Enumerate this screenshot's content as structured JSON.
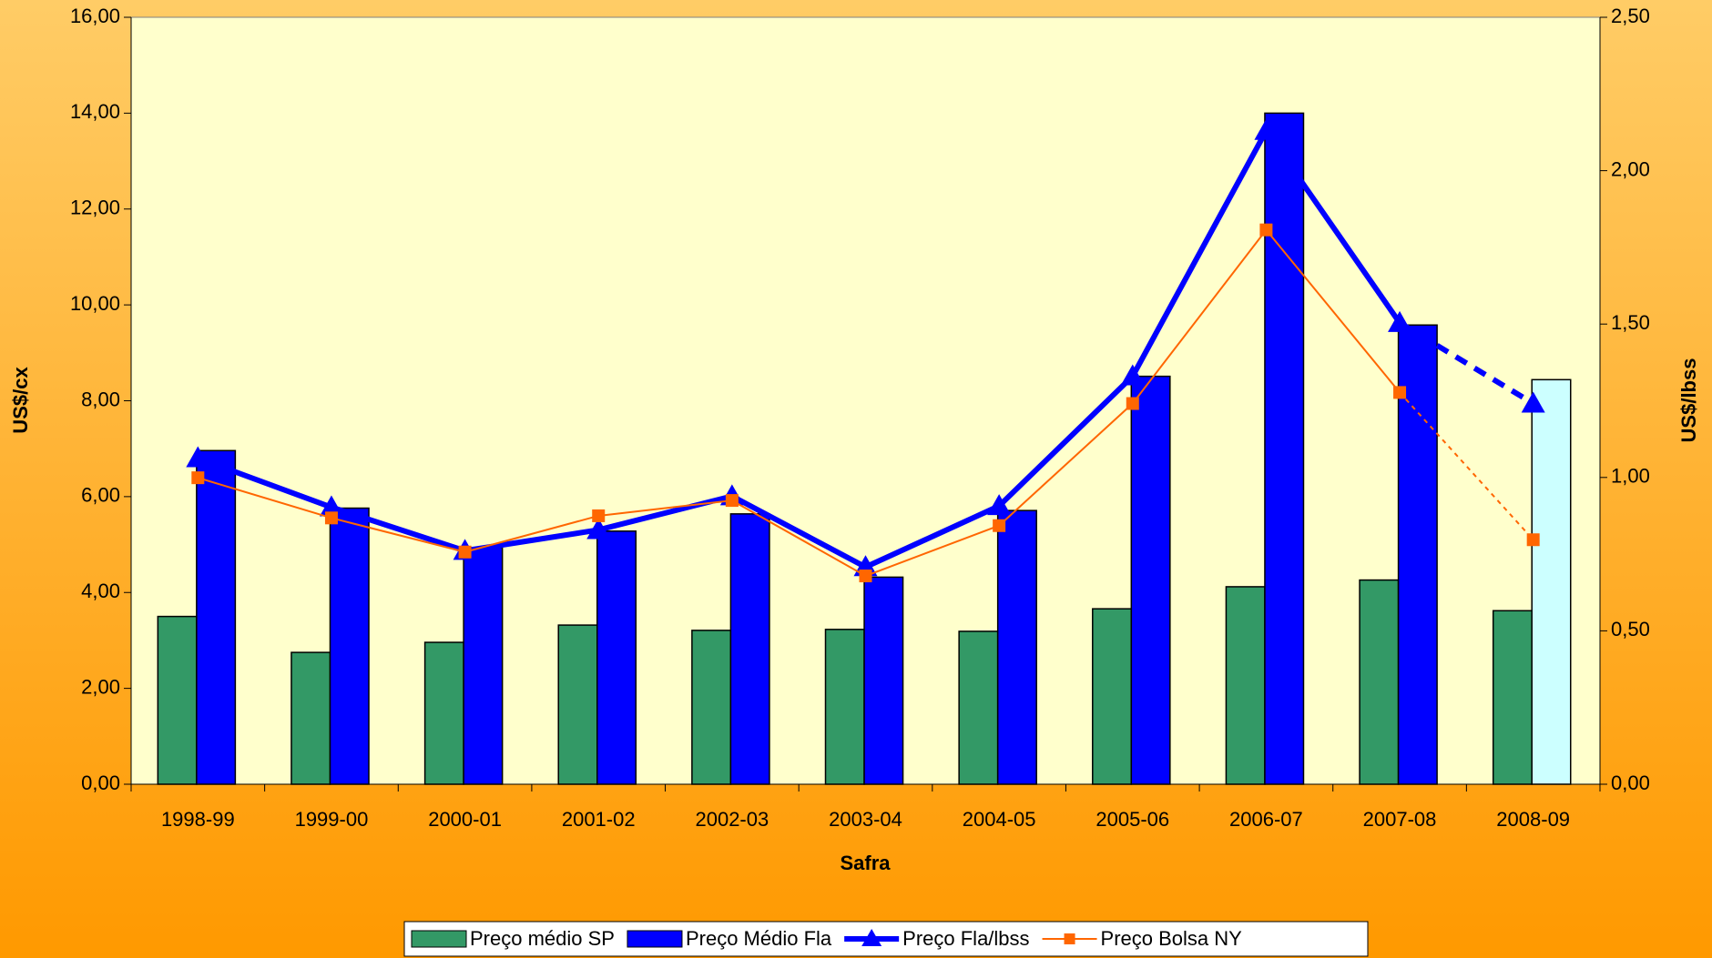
{
  "chart_data": {
    "type": "bar_line",
    "x_label": "Safra",
    "y_label": "US$/cx",
    "y2_label": "US$/lbss",
    "categories": [
      "1998-99",
      "1999-00",
      "2000-01",
      "2001-02",
      "2002-03",
      "2003-04",
      "2004-05",
      "2005-06",
      "2006-07",
      "2007-08",
      "2008-09"
    ],
    "series": [
      {
        "name": "Preço médio SP",
        "type": "bar",
        "color": "#339966",
        "values": [
          3.5,
          2.75,
          2.96,
          3.32,
          3.21,
          3.23,
          3.19,
          3.66,
          4.12,
          4.26,
          3.62
        ]
      },
      {
        "name": "Preço Médio Fla",
        "type": "bar",
        "color": "#0000ff",
        "point_colors": [
          null,
          null,
          null,
          null,
          null,
          null,
          null,
          null,
          null,
          null,
          "#ccffff"
        ],
        "values": [
          6.96,
          5.76,
          4.94,
          5.28,
          5.64,
          4.32,
          5.71,
          8.51,
          14.0,
          9.58,
          8.44
        ]
      },
      {
        "name": "Preço Fla/lbss",
        "type": "line",
        "axis": "y2",
        "color": "#0000ff",
        "marker": "triangle",
        "line_width": 6,
        "dash_last_segment": true,
        "values": [
          1.063,
          0.903,
          0.761,
          0.829,
          0.939,
          0.708,
          0.907,
          1.33,
          2.13,
          1.504,
          1.241
        ]
      },
      {
        "name": "Preço Bolsa NY",
        "type": "line",
        "axis": "y2",
        "color": "#ff6600",
        "marker": "square",
        "line_width": 2,
        "dash_last_segment": true,
        "values": [
          0.999,
          0.868,
          0.757,
          0.875,
          0.925,
          0.679,
          0.843,
          1.241,
          1.807,
          1.277,
          0.797
        ]
      }
    ],
    "ylim": [
      0,
      16
    ],
    "yticks": [
      {
        "value": 0,
        "label": "0,00"
      },
      {
        "value": 2,
        "label": "2,00"
      },
      {
        "value": 4,
        "label": "4,00"
      },
      {
        "value": 6,
        "label": "6,00"
      },
      {
        "value": 8,
        "label": "8,00"
      },
      {
        "value": 10,
        "label": "10,00"
      },
      {
        "value": 12,
        "label": "12,00"
      },
      {
        "value": 14,
        "label": "14,00"
      },
      {
        "value": 16,
        "label": "16,00"
      }
    ],
    "y2lim": [
      0,
      2.5
    ],
    "y2ticks": [
      {
        "value": 0,
        "label": "0,00"
      },
      {
        "value": 0.5,
        "label": "0,50"
      },
      {
        "value": 1,
        "label": "1,00"
      },
      {
        "value": 1.5,
        "label": "1,50"
      },
      {
        "value": 2,
        "label": "2,00"
      },
      {
        "value": 2.5,
        "label": "2,50"
      }
    ],
    "legend": "bottom"
  }
}
